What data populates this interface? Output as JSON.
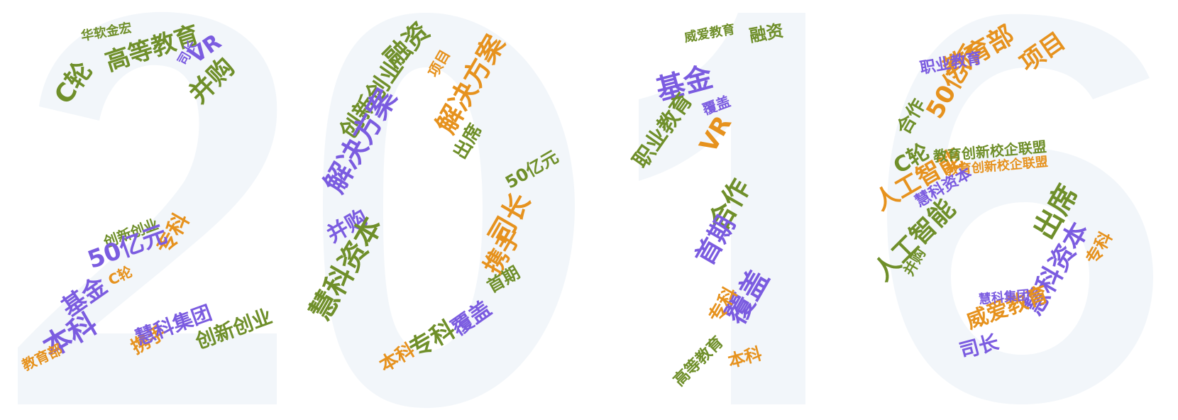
{
  "colors": {
    "green": "#6f8f2a",
    "orange": "#e6921e",
    "purple": "#7b5ce0",
    "digit_fill": "#eef3f8"
  },
  "words": [
    {
      "text": "高等教育",
      "color": "green"
    },
    {
      "text": "C轮",
      "color": "green"
    },
    {
      "text": "VR",
      "color": "purple"
    },
    {
      "text": "并购",
      "color": "green"
    },
    {
      "text": "华软金宏",
      "color": "green"
    },
    {
      "text": "司长",
      "color": "purple"
    },
    {
      "text": "专科",
      "color": "orange"
    },
    {
      "text": "创新创业",
      "color": "green"
    },
    {
      "text": "50亿元",
      "color": "purple"
    },
    {
      "text": "C轮",
      "color": "orange"
    },
    {
      "text": "基金",
      "color": "purple"
    },
    {
      "text": "本科",
      "color": "purple"
    },
    {
      "text": "携手",
      "color": "orange"
    },
    {
      "text": "慧科集团",
      "color": "purple"
    },
    {
      "text": "创新创业",
      "color": "green"
    },
    {
      "text": "教育部",
      "color": "orange"
    },
    {
      "text": "融资",
      "color": "green"
    },
    {
      "text": "创新创业",
      "color": "green"
    },
    {
      "text": "解决方案",
      "color": "orange"
    },
    {
      "text": "解决方案",
      "color": "purple"
    },
    {
      "text": "并购",
      "color": "purple"
    },
    {
      "text": "慧科资本",
      "color": "green"
    },
    {
      "text": "司长",
      "color": "orange"
    },
    {
      "text": "携手",
      "color": "orange"
    },
    {
      "text": "首期",
      "color": "green"
    },
    {
      "text": "覆盖",
      "color": "purple"
    },
    {
      "text": "专科",
      "color": "green"
    },
    {
      "text": "本科",
      "color": "orange"
    },
    {
      "text": "出席",
      "color": "green"
    },
    {
      "text": "项目",
      "color": "orange"
    },
    {
      "text": "50亿元",
      "color": "green"
    },
    {
      "text": "威爱教育",
      "color": "green"
    },
    {
      "text": "融资",
      "color": "green"
    },
    {
      "text": "基金",
      "color": "purple"
    },
    {
      "text": "职业教育",
      "color": "green"
    },
    {
      "text": "VR",
      "color": "orange"
    },
    {
      "text": "合作",
      "color": "green"
    },
    {
      "text": "首期",
      "color": "purple"
    },
    {
      "text": "覆盖",
      "color": "purple"
    },
    {
      "text": "专科",
      "color": "orange"
    },
    {
      "text": "本科",
      "color": "orange"
    },
    {
      "text": "高等教育",
      "color": "green"
    },
    {
      "text": "覆盖",
      "color": "purple"
    },
    {
      "text": "教育部",
      "color": "orange"
    },
    {
      "text": "项目",
      "color": "orange"
    },
    {
      "text": "50亿元",
      "color": "orange"
    },
    {
      "text": "职业教育",
      "color": "purple"
    },
    {
      "text": "合作",
      "color": "green"
    },
    {
      "text": "C轮",
      "color": "green"
    },
    {
      "text": "人工智能",
      "color": "orange"
    },
    {
      "text": "出席",
      "color": "green"
    },
    {
      "text": "人工智能",
      "color": "green"
    },
    {
      "text": "慧科资本",
      "color": "purple"
    },
    {
      "text": "教育创新校企联盟",
      "color": "green"
    },
    {
      "text": "教育创新校企联盟",
      "color": "orange"
    },
    {
      "text": "威爱教育",
      "color": "orange"
    },
    {
      "text": "司长",
      "color": "purple"
    },
    {
      "text": "专科",
      "color": "orange"
    },
    {
      "text": "慧科资本",
      "color": "purple"
    },
    {
      "text": "并购",
      "color": "green"
    },
    {
      "text": "慧科集团",
      "color": "purple"
    }
  ]
}
